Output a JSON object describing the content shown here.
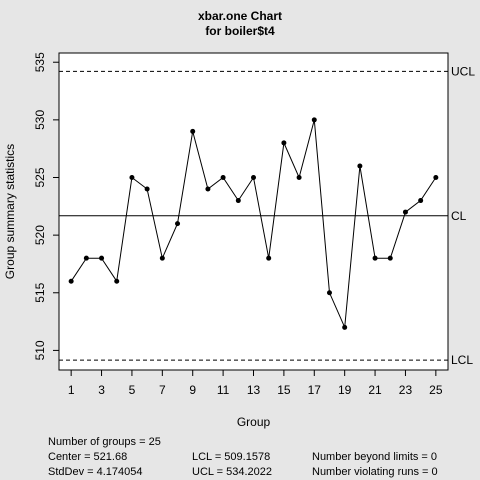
{
  "chart_data": {
    "type": "line",
    "title": "xbar.one Chart",
    "subtitle": "for boiler$t4",
    "xlabel": "Group",
    "ylabel": "Group summary statistics",
    "x": [
      1,
      2,
      3,
      4,
      5,
      6,
      7,
      8,
      9,
      10,
      11,
      12,
      13,
      14,
      15,
      16,
      17,
      18,
      19,
      20,
      21,
      22,
      23,
      24,
      25
    ],
    "values": [
      516,
      518,
      518,
      516,
      525,
      524,
      518,
      521,
      529,
      524,
      525,
      523,
      525,
      518,
      528,
      525,
      530,
      515,
      512,
      526,
      518,
      518,
      522,
      523,
      525
    ],
    "x_tick_labels": [
      "1",
      "3",
      "5",
      "7",
      "9",
      "11",
      "13",
      "15",
      "17",
      "19",
      "21",
      "23",
      "25"
    ],
    "y_tick_labels": [
      "510",
      "515",
      "520",
      "525",
      "530",
      "535"
    ],
    "xlim": [
      0.2,
      25.8
    ],
    "ylim": [
      508.3,
      535.8
    ],
    "limits": {
      "UCL": {
        "label": "UCL",
        "value": 534.2022
      },
      "CL": {
        "label": "CL",
        "value": 521.68
      },
      "LCL": {
        "label": "LCL",
        "value": 509.1578
      }
    },
    "grid": false,
    "legend": "none"
  },
  "stats": {
    "groups": "Number of groups = 25",
    "center": "Center = 521.68",
    "stddev": "StdDev = 4.174054",
    "lcl": "LCL = 509.1578",
    "ucl": "UCL = 534.2022",
    "beyond": "Number beyond limits = 0",
    "runs": "Number violating runs = 0"
  }
}
